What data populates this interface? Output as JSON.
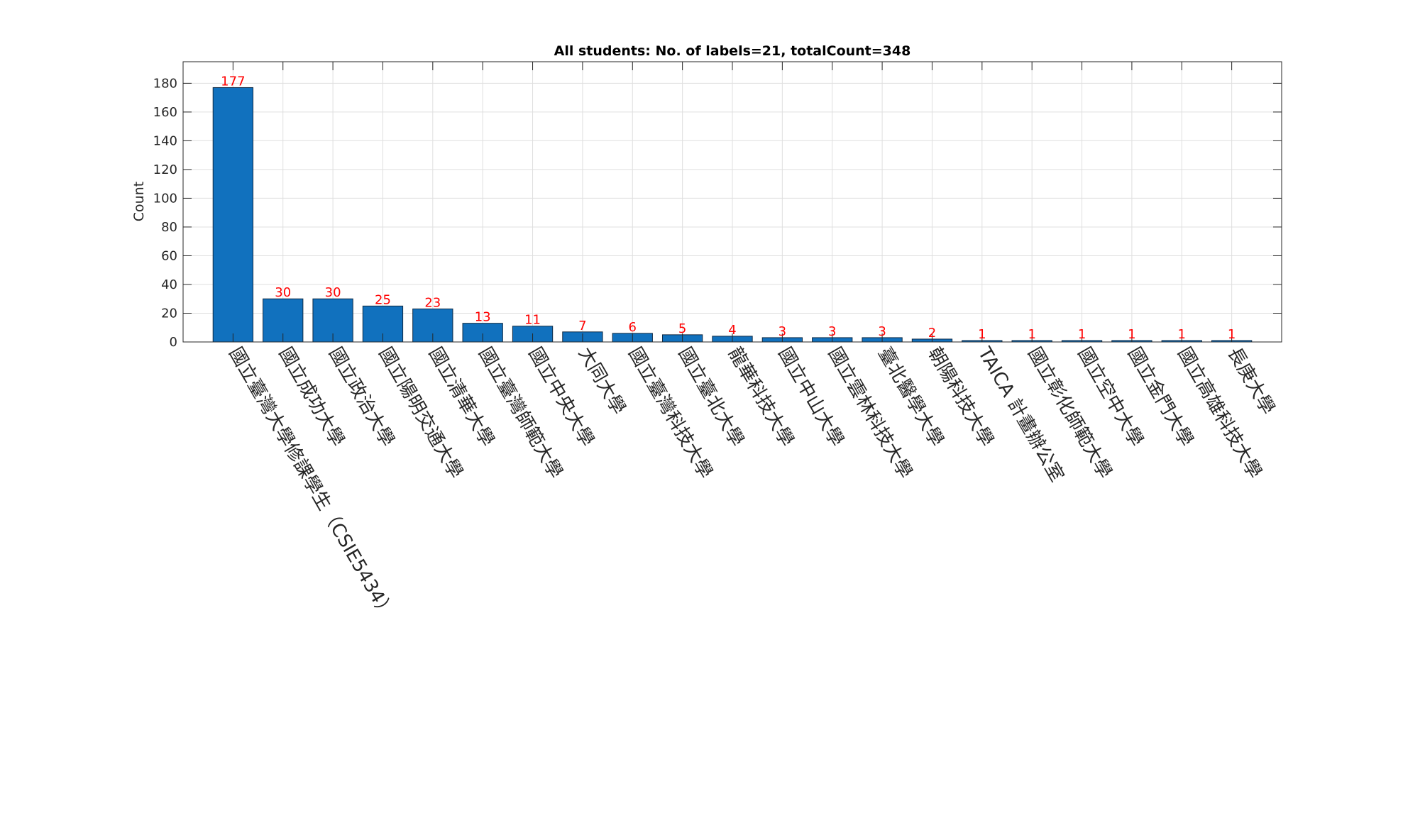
{
  "colors": {
    "bar": "#1171BE",
    "bar_edge": "#0F2A44",
    "value_label": "#FF0000",
    "grid": "#DFDFDF",
    "axis": "#262626",
    "text": "#262626"
  },
  "chart_data": {
    "type": "bar",
    "title": "All students: No. of labels=21, totalCount=348",
    "xlabel": "",
    "ylabel": "Count",
    "ylim": [
      0,
      195
    ],
    "yticks": [
      0,
      20,
      40,
      60,
      80,
      100,
      120,
      140,
      160,
      180
    ],
    "grid": true,
    "tick_label_rotation": "-60 degrees",
    "categories": [
      "國立臺灣大學修課學生（CSIE5434）",
      "國立成功大學",
      "國立政治大學",
      "國立陽明交通大學",
      "國立清華大學",
      "國立臺灣師範大學",
      "國立中央大學",
      "大同大學",
      "國立臺灣科技大學",
      "國立臺北大學",
      "龍華科技大學",
      "國立中山大學",
      "國立雲林科技大學",
      "臺北醫學大學",
      "朝陽科技大學",
      "TAICA 計畫辦公室",
      "國立彰化師範大學",
      "國立空中大學",
      "國立金門大學",
      "國立高雄科技大學",
      "長庚大學"
    ],
    "values": [
      177,
      30,
      30,
      25,
      23,
      13,
      11,
      7,
      6,
      5,
      4,
      3,
      3,
      3,
      2,
      1,
      1,
      1,
      1,
      1,
      1
    ]
  }
}
